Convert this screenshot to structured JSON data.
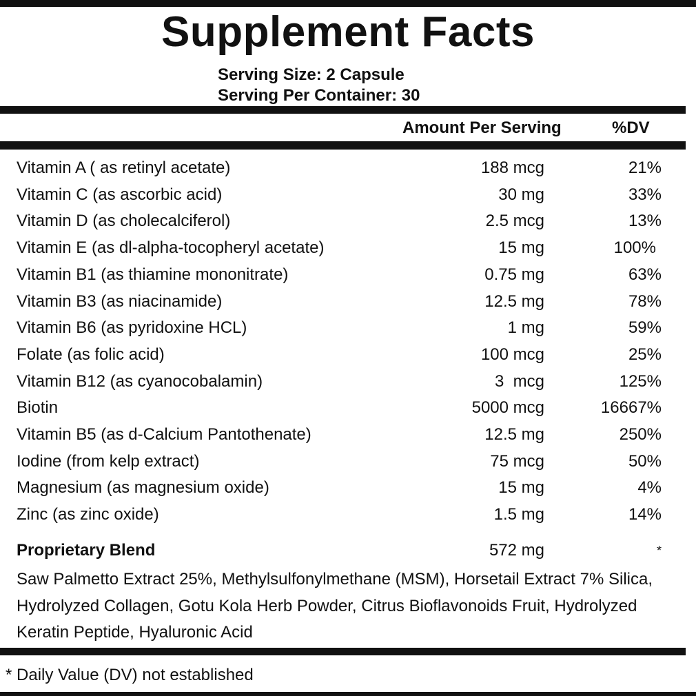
{
  "title": "Supplement Facts",
  "serving_size": "Serving Size: 2 Capsule",
  "servings_per_container": "Serving Per Container: 30",
  "header": {
    "amount": "Amount Per Serving",
    "dv": "%DV"
  },
  "nutrients": [
    {
      "name": "Vitamin A ( as retinyl acetate)",
      "amount": "188 mcg",
      "dv": "21%"
    },
    {
      "name": "Vitamin C (as ascorbic acid)",
      "amount": "30 mg",
      "dv": "33%"
    },
    {
      "name": "Vitamin D (as cholecalciferol)",
      "amount": "2.5 mcg",
      "dv": "13%"
    },
    {
      "name": "Vitamin E (as dl-alpha-tocopheryl acetate)",
      "amount": "15 mg",
      "dv": "100%"
    },
    {
      "name": "Vitamin B1 (as thiamine mononitrate)",
      "amount": "0.75 mg",
      "dv": "63%"
    },
    {
      "name": "Vitamin B3 (as niacinamide)",
      "amount": "12.5 mg",
      "dv": "78%"
    },
    {
      "name": "Vitamin B6 (as pyridoxine HCL)",
      "amount": "1 mg",
      "dv": "59%"
    },
    {
      "name": "Folate (as folic acid)",
      "amount": "100 mcg",
      "dv": "25%"
    },
    {
      "name": "Vitamin B12 (as cyanocobalamin)",
      "amount": "3  mcg",
      "dv": "125%"
    },
    {
      "name": "Biotin",
      "amount": "5000 mcg",
      "dv": "16667%"
    },
    {
      "name": "Vitamin B5 (as d-Calcium Pantothenate)",
      "amount": "12.5 mg",
      "dv": "250%"
    },
    {
      "name": "Iodine (from kelp extract)",
      "amount": "75 mcg",
      "dv": "50%"
    },
    {
      "name": "Magnesium (as magnesium oxide)",
      "amount": "15 mg",
      "dv": "4%"
    },
    {
      "name": "Zinc (as zinc oxide)",
      "amount": "1.5 mg",
      "dv": "14%"
    }
  ],
  "blend": {
    "name": "Proprietary Blend",
    "amount": "572 mg",
    "dv": "*",
    "ingredients": "Saw Palmetto Extract 25%, Methylsulfonylmethane (MSM), Horsetail Extract 7% Silica, Hydrolyzed Collagen, Gotu Kola Herb Powder, Citrus Bioflavonoids Fruit, Hydrolyzed Keratin Peptide, Hyaluronic Acid"
  },
  "footnote": "* Daily Value (DV) not established"
}
